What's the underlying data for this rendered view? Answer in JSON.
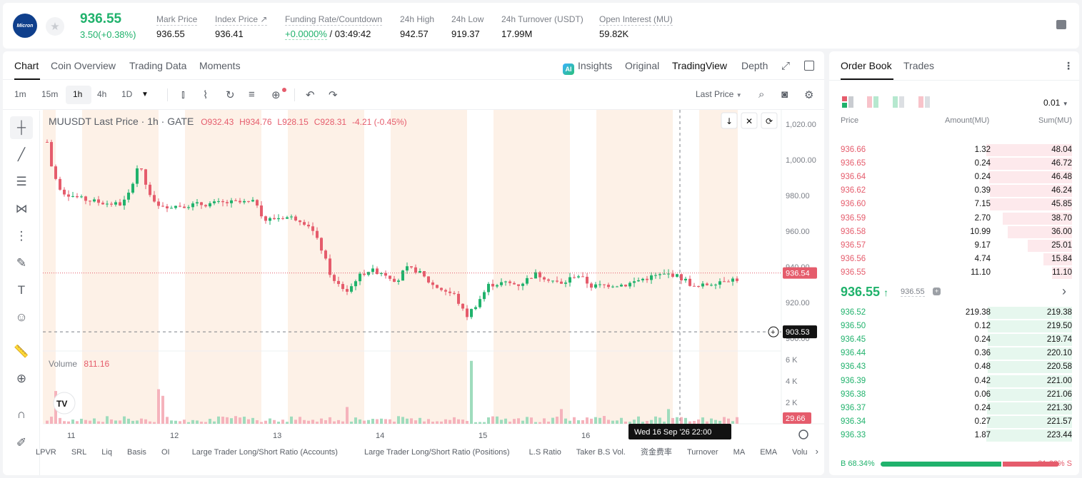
{
  "header": {
    "logo_text": "Micron",
    "last_price": "936.55",
    "change": "3.50(+0.38%)",
    "stats": [
      {
        "label": "Mark Price",
        "value": "936.55"
      },
      {
        "label": "Index Price ↗",
        "value": "936.41"
      },
      {
        "label": "Funding Rate/Countdown",
        "value_green": "+0.0000%",
        "value": "/ 03:49:42"
      },
      {
        "label": "24h High",
        "value": "942.57"
      },
      {
        "label": "24h Low",
        "value": "919.37"
      },
      {
        "label": "24h Turnover (USDT)",
        "value": "17.99M"
      },
      {
        "label": "Open Interest (MU)",
        "value": "59.82K"
      }
    ]
  },
  "chart_tabs": [
    "Chart",
    "Coin Overview",
    "Trading Data",
    "Moments"
  ],
  "chart_views": {
    "insights": "Insights",
    "original": "Original",
    "tradingview": "TradingView",
    "depth": "Depth",
    "ai_badge": "AI"
  },
  "intervals": [
    "1m",
    "15m",
    "1h",
    "4h",
    "1D"
  ],
  "price_type": "Last Price",
  "legend": {
    "symbol": "MUUSDT Last Price · 1h · GATE",
    "o": "O932.43",
    "h": "H934.76",
    "l": "L928.15",
    "c": "C928.31",
    "chg": "-4.21 (-0.45%)",
    "volume_label": "Volume",
    "volume_value": "811.16"
  },
  "tv_logo": "TV",
  "price_axis": [
    "1,020.00",
    "1,000.00",
    "980.00",
    "960.00",
    "940.00",
    "920.00",
    "900.00"
  ],
  "volume_axis": [
    "6 K",
    "4 K",
    "2 K"
  ],
  "time_axis": [
    "11",
    "12",
    "13",
    "14",
    "15",
    "16"
  ],
  "crosshair_time": "Wed 16 Sep '26   22:00",
  "last_price_tag": "936.54",
  "cross_price_tag": "903.53",
  "last_volume_tag": "29.66",
  "indicators": [
    "LPVR",
    "SRL",
    "Liq",
    "Basis",
    "OI",
    "Large Trader Long/Short Ratio (Accounts)",
    "Large Trader Long/Short Ratio (Positions)",
    "L.S Ratio",
    "Taker B.S Vol.",
    "资金费率",
    "Turnover",
    "MA",
    "EMA",
    "Volu"
  ],
  "orderbook": {
    "tabs": [
      "Order Book",
      "Trades"
    ],
    "precision": "0.01",
    "headers": [
      "Price",
      "Amount(MU)",
      "Sum(MU)"
    ],
    "asks": [
      [
        "936.66",
        "1.32",
        "48.04"
      ],
      [
        "936.65",
        "0.24",
        "46.72"
      ],
      [
        "936.64",
        "0.24",
        "46.48"
      ],
      [
        "936.62",
        "0.39",
        "46.24"
      ],
      [
        "936.60",
        "7.15",
        "45.85"
      ],
      [
        "936.59",
        "2.70",
        "38.70"
      ],
      [
        "936.58",
        "10.99",
        "36.00"
      ],
      [
        "936.57",
        "9.17",
        "25.01"
      ],
      [
        "936.56",
        "4.74",
        "15.84"
      ],
      [
        "936.55",
        "11.10",
        "11.10"
      ]
    ],
    "mid_price": "936.55",
    "mid_mark": "936.55",
    "bids": [
      [
        "936.52",
        "219.38",
        "219.38"
      ],
      [
        "936.50",
        "0.12",
        "219.50"
      ],
      [
        "936.45",
        "0.24",
        "219.74"
      ],
      [
        "936.44",
        "0.36",
        "220.10"
      ],
      [
        "936.43",
        "0.48",
        "220.58"
      ],
      [
        "936.39",
        "0.42",
        "221.00"
      ],
      [
        "936.38",
        "0.06",
        "221.06"
      ],
      [
        "936.37",
        "0.24",
        "221.30"
      ],
      [
        "936.34",
        "0.27",
        "221.57"
      ],
      [
        "936.33",
        "1.87",
        "223.44"
      ]
    ],
    "buy_ratio": "B 68.34%",
    "sell_ratio": "31.66% S",
    "buy_fraction": 0.6834
  },
  "colors": {
    "up": "#20b26c",
    "down": "#e55c6c",
    "session": "#fdf1e7"
  }
}
